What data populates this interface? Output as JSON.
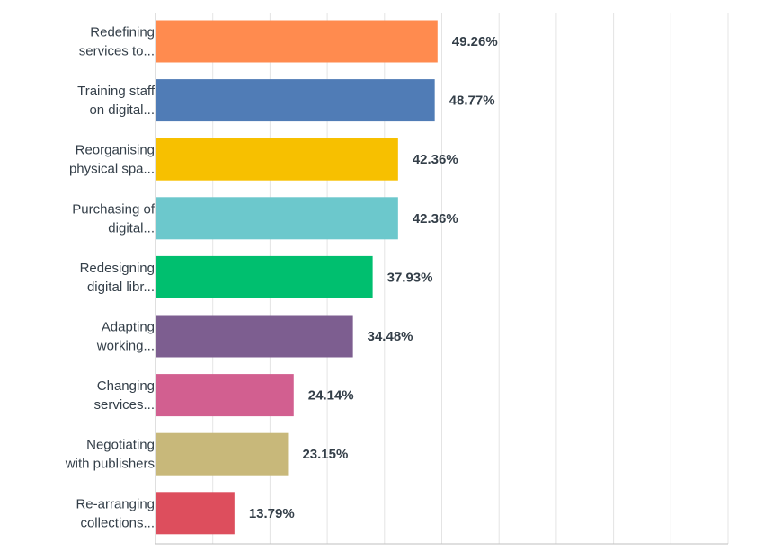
{
  "chart_data": {
    "type": "bar",
    "orientation": "horizontal",
    "categories": [
      [
        "Redefining",
        "services to..."
      ],
      [
        "Training staff",
        "on digital..."
      ],
      [
        "Reorganising",
        "physical spa..."
      ],
      [
        "Purchasing of",
        "digital..."
      ],
      [
        "Redesigning",
        "digital libr..."
      ],
      [
        "Adapting",
        "working..."
      ],
      [
        "Changing",
        "services..."
      ],
      [
        "Negotiating",
        "with publishers"
      ],
      [
        "Re-arranging",
        "collections..."
      ]
    ],
    "values": [
      49.26,
      48.77,
      42.36,
      42.36,
      37.93,
      34.48,
      24.14,
      23.15,
      13.79
    ],
    "value_labels": [
      "49.26%",
      "48.77%",
      "42.36%",
      "42.36%",
      "37.93%",
      "34.48%",
      "24.14%",
      "23.15%",
      "13.79%"
    ],
    "colors": [
      "#ff8b4f",
      "#507cb6",
      "#f7c000",
      "#6cc8cc",
      "#00bf6f",
      "#7d5e90",
      "#d25f90",
      "#c8b87a",
      "#dd4e5d"
    ],
    "xlim": [
      0,
      100
    ],
    "grid": true,
    "grid_color": "#e4e4e4",
    "axis_color": "#bfbfbf",
    "title": "",
    "xlabel": "",
    "ylabel": ""
  }
}
